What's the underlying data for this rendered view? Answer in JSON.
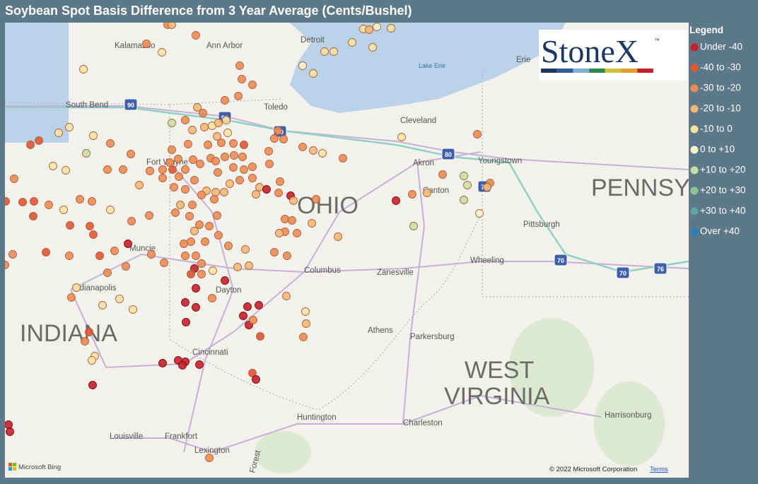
{
  "header": {
    "title": "Soybean Spot Basis Difference from 3 Year Average (Cents/Bushel)"
  },
  "legend": {
    "title": "Legend",
    "items": [
      {
        "label": "Under -40",
        "color": "#c8202a"
      },
      {
        "label": "-40 to -30",
        "color": "#e15536"
      },
      {
        "label": "-30 to -20",
        "color": "#ec8c55"
      },
      {
        "label": "-20 to -10",
        "color": "#f4b977"
      },
      {
        "label": "-10 to 0",
        "color": "#f7e3a4"
      },
      {
        "label": "0 to +10",
        "color": "#f5f3c8"
      },
      {
        "label": "+10 to +20",
        "color": "#c5e0a4"
      },
      {
        "label": "+20 to +30",
        "color": "#8ec490"
      },
      {
        "label": "+30 to +40",
        "color": "#5aa6a1"
      },
      {
        "label": "Over +40",
        "color": "#2b7cb7"
      }
    ]
  },
  "logo": {
    "text": "StoneX",
    "mark": "™"
  },
  "map": {
    "labels": [
      "Kalamazoo",
      "Ann Arbor",
      "Detroit",
      "Lake Erie",
      "Erie",
      "South Bend",
      "Toledo",
      "Cleveland",
      "Fort Wayne",
      "Akron",
      "Youngstown",
      "OHIO",
      "Canton",
      "PENNSYLVANIA",
      "Pittsburgh",
      "Muncie",
      "Columbus",
      "Zanesville",
      "Wheeling",
      "Indianapolis",
      "Dayton",
      "INDIANA",
      "Athens",
      "Parkersburg",
      "WEST",
      "VIRGINIA",
      "Cincinnati",
      "Huntington",
      "Charleston",
      "Harrisonburg",
      "Louisville",
      "Frankfort",
      "Lexington",
      "Forest"
    ],
    "shields": [
      "90",
      "90",
      "90",
      "80",
      "76",
      "70",
      "70",
      "76"
    ]
  },
  "footer": {
    "bing": "Microsoft Bing",
    "copyright": "© 2022 Microsoft Corporation",
    "terms": "Terms"
  }
}
